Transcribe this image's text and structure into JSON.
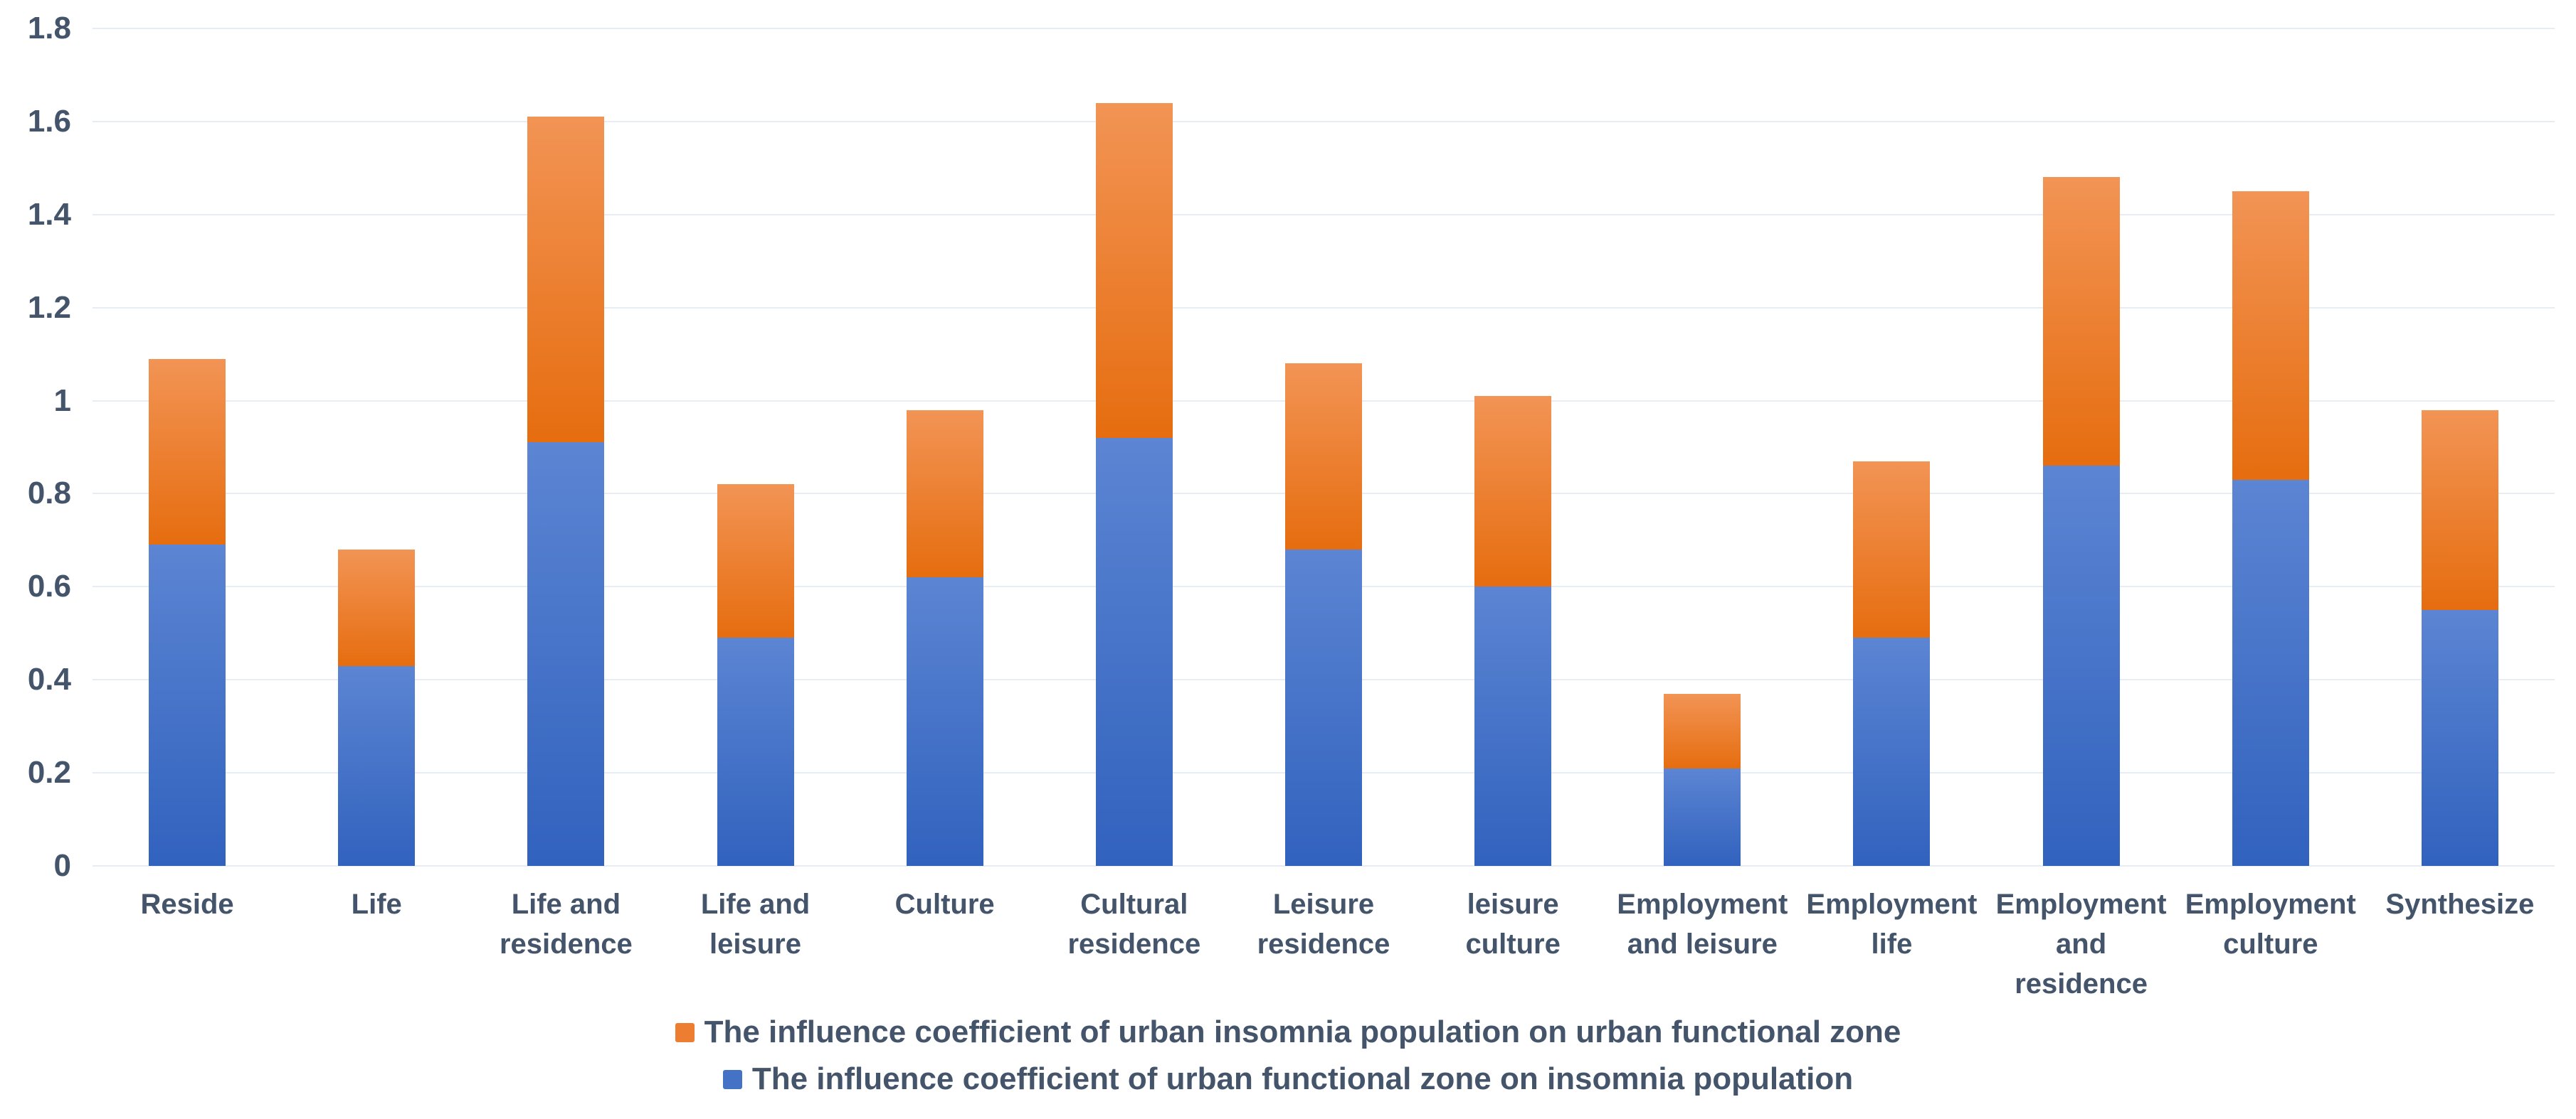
{
  "style": {
    "background": "#FFFFFF",
    "text_color": "#44546A",
    "gridline_color": "#E8ECF3",
    "blue_gradient_top": "#5C85D3",
    "blue_gradient_bottom": "#3162BE",
    "orange_gradient_top": "#F29455",
    "orange_gradient_bottom": "#E66D0F"
  },
  "chart_data": {
    "type": "bar",
    "stacked": true,
    "title": "",
    "xlabel": "",
    "ylabel": "",
    "grid": "horizontal",
    "ylim": [
      0,
      1.8
    ],
    "ytick_labels": [
      "0",
      "0.2",
      "0.4",
      "0.6",
      "0.8",
      "1",
      "1.2",
      "1.4",
      "1.6",
      "1.8"
    ],
    "categories": [
      "Reside",
      "Life",
      "Life and residence",
      "Life and leisure",
      "Culture",
      "Cultural residence",
      "Leisure residence",
      "leisure culture",
      "Employment and leisure",
      "Employment life",
      "Employment and residence",
      "Employment culture",
      "Synthesize"
    ],
    "series": [
      {
        "key": "blue",
        "name": "The influence coefficient of urban functional zone on insomnia population",
        "color": "#4472C4",
        "values": [
          0.69,
          0.43,
          0.91,
          0.49,
          0.62,
          0.92,
          0.68,
          0.6,
          0.21,
          0.49,
          0.86,
          0.83,
          0.55
        ]
      },
      {
        "key": "orange",
        "name": "The influence coefficient of urban insomnia population on urban functional zone",
        "color": "#ED7D31",
        "values": [
          0.4,
          0.25,
          0.7,
          0.33,
          0.36,
          0.72,
          0.4,
          0.41,
          0.16,
          0.38,
          0.62,
          0.62,
          0.43
        ]
      }
    ],
    "stack_totals": [
      1.09,
      0.68,
      1.61,
      0.82,
      0.98,
      1.64,
      1.08,
      1.01,
      0.37,
      0.87,
      1.48,
      1.45,
      0.98
    ],
    "legend_position": "bottom",
    "legend": [
      {
        "key": "orange",
        "swatch_color": "#ED7D31",
        "label": "The influence coefficient of urban insomnia population on urban functional zone"
      },
      {
        "key": "blue",
        "swatch_color": "#4472C4",
        "label": "The influence coefficient of urban functional zone on insomnia population"
      }
    ]
  }
}
